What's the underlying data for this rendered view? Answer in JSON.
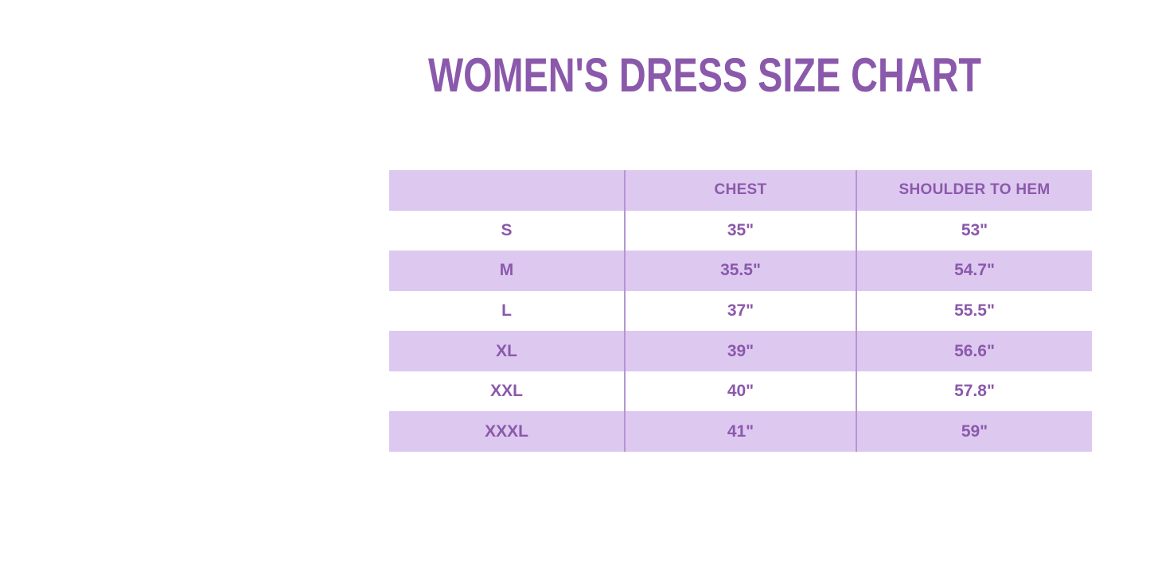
{
  "title": "WOMEN'S DRESS SIZE CHART",
  "colors": {
    "accent_purple": "#8b59ab",
    "row_lavender": "#ddc8f0",
    "divider_purple": "#b495d4",
    "background": "#ffffff"
  },
  "chart_data": {
    "type": "table",
    "title": "WOMEN'S DRESS SIZE CHART",
    "columns": [
      "",
      "CHEST",
      "SHOULDER TO HEM"
    ],
    "rows": [
      {
        "size": "S",
        "chest": "35\"",
        "shoulder_to_hem": "53\""
      },
      {
        "size": "M",
        "chest": "35.5\"",
        "shoulder_to_hem": "54.7\""
      },
      {
        "size": "L",
        "chest": "37\"",
        "shoulder_to_hem": "55.5\""
      },
      {
        "size": "XL",
        "chest": "39\"",
        "shoulder_to_hem": "56.6\""
      },
      {
        "size": "XXL",
        "chest": "40\"",
        "shoulder_to_hem": "57.8\""
      },
      {
        "size": "XXXL",
        "chest": "41\"",
        "shoulder_to_hem": "59\""
      }
    ],
    "layout": {
      "striped_rows": "header, M, XL, XXXL shaded lavender; others white",
      "grid": "vertical dividers only, between the three columns"
    }
  }
}
